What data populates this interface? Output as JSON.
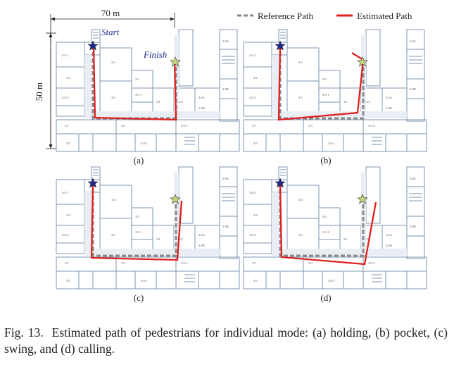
{
  "figure": {
    "dimension_width": "70 m",
    "dimension_height": "50 m",
    "start_label": "Start",
    "finish_label": "Finish",
    "legend": [
      {
        "label": "Reference Path",
        "color": "#8a8a8a",
        "style": "dashed"
      },
      {
        "label": "Estimated Path",
        "color": "#e0201f",
        "style": "solid"
      }
    ],
    "panels": [
      {
        "id": "a",
        "label": "(a)",
        "mode": "holding"
      },
      {
        "id": "b",
        "label": "(b)",
        "mode": "pocket"
      },
      {
        "id": "c",
        "label": "(c)",
        "mode": "swing"
      },
      {
        "id": "d",
        "label": "(d)",
        "mode": "calling"
      }
    ],
    "room_labels": [
      "3/4",
      "3/4-1",
      "3/4-2",
      "3/5",
      "3/7",
      "3/3",
      "3/1",
      "3/2",
      "3/3-1",
      "3/3-2",
      "3/2A",
      "3/2B",
      "3/3A",
      "3/4A",
      "3/4B"
    ],
    "colors": {
      "start_star": "#1f2a8c",
      "finish_star": "#c8d67a",
      "floorplan": "#6e8fb0"
    }
  },
  "caption": {
    "label": "Fig. 13.",
    "text": "Estimated path of pedestrians for individual mode: (a) holding, (b) pocket, (c) swing, and (d) calling."
  }
}
